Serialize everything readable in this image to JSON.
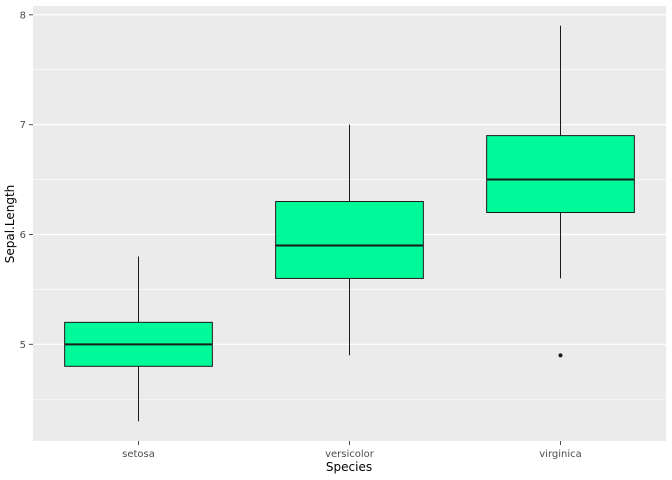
{
  "chart_data": {
    "type": "boxplot",
    "title": "",
    "xlabel": "Species",
    "ylabel": "Sepal.Length",
    "categories": [
      "setosa",
      "versicolor",
      "virginica"
    ],
    "series": [
      {
        "name": "setosa",
        "min": 4.3,
        "q1": 4.8,
        "median": 5.0,
        "q3": 5.2,
        "max": 5.8,
        "outliers": []
      },
      {
        "name": "versicolor",
        "min": 4.9,
        "q1": 5.6,
        "median": 5.9,
        "q3": 6.3,
        "max": 7.0,
        "outliers": []
      },
      {
        "name": "virginica",
        "min": 5.6,
        "q1": 6.2,
        "median": 6.5,
        "q3": 6.9,
        "max": 7.9,
        "outliers": [
          4.9
        ]
      }
    ],
    "ylim": [
      4.12,
      8.08
    ],
    "yticks": [
      5,
      6,
      7,
      8
    ],
    "minor_gridlines": [
      4.5,
      5.5,
      6.5,
      7.5
    ],
    "legend": "none",
    "grid": "on",
    "colors": {
      "box_fill": "#00FA9A",
      "box_stroke": "#1a1a1a",
      "panel_bg": "#EBEBEB",
      "grid_major": "#FFFFFF",
      "grid_minor": "#FFFFFF",
      "tick_text": "#4D4D4D",
      "axis_title": "#000000",
      "outlier": "#1a1a1a"
    }
  }
}
